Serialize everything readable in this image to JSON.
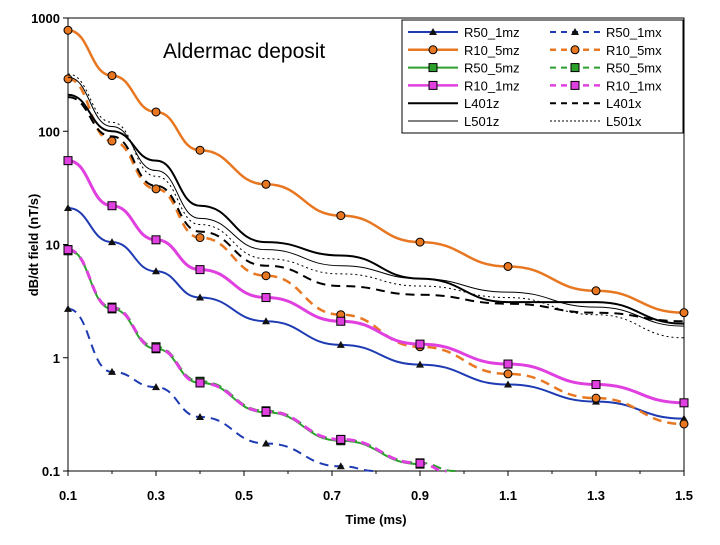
{
  "chart_data": {
    "type": "line",
    "title": "Aldermac deposit",
    "xlabel": "Time (ms)",
    "ylabel": "dB/dt field (nT/s)",
    "xscale": "linear",
    "yscale": "log",
    "xlim": [
      0.1,
      1.5
    ],
    "ylim": [
      0.1,
      1000
    ],
    "x_ticks": [
      "0.1",
      "0.3",
      "0.5",
      "0.7",
      "0.9",
      "1.1",
      "1.3",
      "1.5"
    ],
    "y_ticks": [
      "0.1",
      "1",
      "10",
      "100",
      "1000"
    ],
    "grid": "none",
    "legend_position": "top-right",
    "series": [
      {
        "name": "R50_1mz",
        "color": "#1f3bb3",
        "dash": "solid",
        "marker": "triangle",
        "width": 2,
        "x": [
          0.1,
          0.2,
          0.3,
          0.4,
          0.55,
          0.72,
          0.9,
          1.1,
          1.3,
          1.5
        ],
        "y": [
          21,
          10.5,
          5.8,
          3.4,
          2.1,
          1.3,
          0.87,
          0.58,
          0.41,
          0.29
        ]
      },
      {
        "name": "R50_1mx",
        "color": "#1f3bb3",
        "dash": "dashed",
        "marker": "triangle",
        "width": 2,
        "x": [
          0.1,
          0.2,
          0.3,
          0.4,
          0.55,
          0.72,
          0.8
        ],
        "y": [
          2.7,
          0.75,
          0.55,
          0.3,
          0.175,
          0.11,
          0.1
        ]
      },
      {
        "name": "R10_5mz",
        "color": "#e87722",
        "dash": "solid",
        "marker": "circle",
        "width": 2.5,
        "x": [
          0.1,
          0.2,
          0.3,
          0.4,
          0.55,
          0.72,
          0.9,
          1.1,
          1.3,
          1.5
        ],
        "y": [
          780,
          310,
          148,
          68,
          34,
          18,
          10.5,
          6.4,
          3.9,
          2.5
        ]
      },
      {
        "name": "R10_5mx",
        "color": "#e87722",
        "dash": "dashed",
        "marker": "circle",
        "width": 2.5,
        "x": [
          0.1,
          0.2,
          0.3,
          0.4,
          0.55,
          0.72,
          0.9,
          1.1,
          1.3,
          1.5
        ],
        "y": [
          290,
          82,
          31,
          11.5,
          5.3,
          2.4,
          1.25,
          0.72,
          0.44,
          0.26
        ]
      },
      {
        "name": "R50_5mz",
        "color": "#2ca02c",
        "dash": "solid",
        "marker": "square",
        "width": 2,
        "x": [
          0.1,
          0.2,
          0.3,
          0.4,
          0.55,
          0.72,
          0.9
        ],
        "y": [
          9,
          2.7,
          1.2,
          0.6,
          0.33,
          0.185,
          0.115
        ]
      },
      {
        "name": "R50_5mx",
        "color": "#2ca02c",
        "dash": "dashed",
        "marker": "square",
        "width": 2,
        "x": [
          0.1,
          0.2,
          0.3,
          0.4,
          0.55,
          0.72,
          0.9,
          0.98
        ],
        "y": [
          8.8,
          2.8,
          1.25,
          0.62,
          0.34,
          0.19,
          0.118,
          0.1
        ]
      },
      {
        "name": "R10_1mz",
        "color": "#e040e0",
        "dash": "solid",
        "marker": "square",
        "width": 3,
        "x": [
          0.1,
          0.2,
          0.3,
          0.4,
          0.55,
          0.72,
          0.9,
          1.1,
          1.3,
          1.5
        ],
        "y": [
          55,
          22,
          11,
          6,
          3.4,
          2.1,
          1.32,
          0.88,
          0.58,
          0.4
        ]
      },
      {
        "name": "R10_1mx",
        "color": "#e040e0",
        "dash": "dashed",
        "marker": "square",
        "width": 3,
        "x": [
          0.1,
          0.2,
          0.3,
          0.4,
          0.55,
          0.72,
          0.9,
          0.96
        ],
        "y": [
          9,
          2.75,
          1.22,
          0.6,
          0.335,
          0.19,
          0.117,
          0.1
        ]
      },
      {
        "name": "L401z",
        "color": "#000000",
        "dash": "solid",
        "marker": "none",
        "width": 2,
        "x": [
          0.1,
          0.2,
          0.3,
          0.4,
          0.55,
          0.72,
          0.9,
          1.1,
          1.3,
          1.5
        ],
        "y": [
          210,
          100,
          55,
          22,
          10.5,
          8,
          5,
          3.1,
          3.1,
          2
        ]
      },
      {
        "name": "L401x",
        "color": "#000000",
        "dash": "dashed",
        "marker": "none",
        "width": 2,
        "x": [
          0.1,
          0.2,
          0.3,
          0.4,
          0.55,
          0.72,
          0.9,
          1.1,
          1.3,
          1.5
        ],
        "y": [
          200,
          90,
          33,
          13,
          6.5,
          4.3,
          3.6,
          3.0,
          2.5,
          2.1
        ]
      },
      {
        "name": "L501z",
        "color": "#000000",
        "dash": "solid",
        "marker": "none",
        "width": 1,
        "x": [
          0.1,
          0.2,
          0.3,
          0.4,
          0.55,
          0.72,
          0.9,
          1.1,
          1.3,
          1.5
        ],
        "y": [
          300,
          110,
          45,
          17,
          9,
          6.5,
          5,
          3.8,
          2.8,
          1.9
        ]
      },
      {
        "name": "L501x",
        "color": "#000000",
        "dash": "dotted",
        "marker": "none",
        "width": 1,
        "x": [
          0.1,
          0.2,
          0.3,
          0.4,
          0.55,
          0.72,
          0.9,
          1.1,
          1.3,
          1.5
        ],
        "y": [
          320,
          120,
          40,
          15,
          7.5,
          5.5,
          4.3,
          3.4,
          2.4,
          1.5
        ]
      }
    ]
  }
}
